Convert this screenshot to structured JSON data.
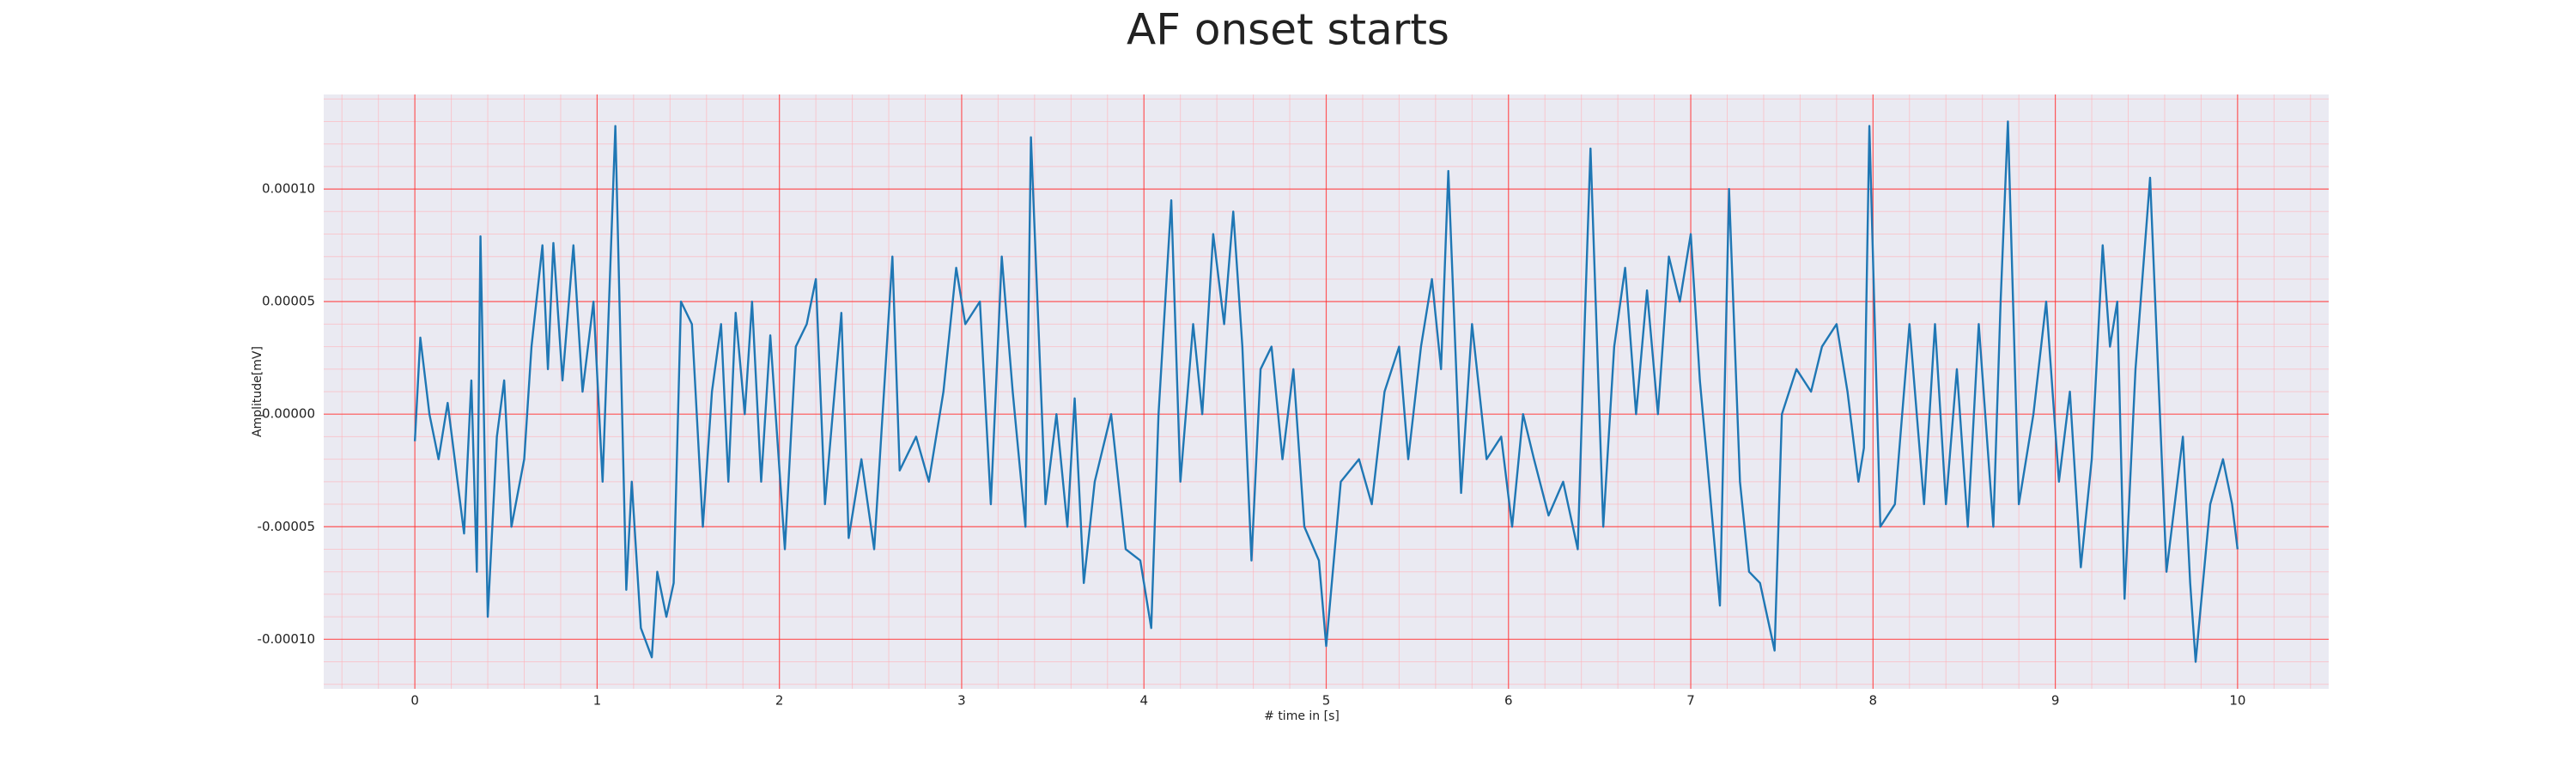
{
  "chart_data": {
    "type": "line",
    "title": "AF onset starts",
    "xlabel": "# time in [s]",
    "ylabel": "Amplitude[mV]",
    "xlim": [
      -0.5,
      10.5
    ],
    "ylim": [
      -0.000122,
      0.000142
    ],
    "xticks": [
      0,
      1,
      2,
      3,
      4,
      5,
      6,
      7,
      8,
      9,
      10
    ],
    "yticks": [
      {
        "value": -0.0001,
        "label": "-0.00010"
      },
      {
        "value": -5e-05,
        "label": "-0.00005"
      },
      {
        "value": 0,
        "label": "0.00000"
      },
      {
        "value": 5e-05,
        "label": "0.00005"
      },
      {
        "value": 0.0001,
        "label": "0.00010"
      }
    ],
    "grid": true,
    "minor_grid": true,
    "series": [
      {
        "color": "#1f77b4",
        "x": [
          0,
          0.03,
          0.08,
          0.13,
          0.18,
          0.27,
          0.31,
          0.34,
          0.36,
          0.4,
          0.45,
          0.49,
          0.53,
          0.6,
          0.64,
          0.7,
          0.73,
          0.76,
          0.81,
          0.87,
          0.92,
          0.98,
          1.03,
          1.1,
          1.16,
          1.19,
          1.24,
          1.3,
          1.33,
          1.38,
          1.42,
          1.46,
          1.52,
          1.58,
          1.63,
          1.68,
          1.72,
          1.76,
          1.81,
          1.85,
          1.9,
          1.95,
          2.03,
          2.09,
          2.15,
          2.2,
          2.25,
          2.34,
          2.38,
          2.45,
          2.52,
          2.62,
          2.66,
          2.75,
          2.82,
          2.9,
          2.97,
          3.02,
          3.1,
          3.16,
          3.22,
          3.28,
          3.35,
          3.38,
          3.46,
          3.52,
          3.58,
          3.62,
          3.67,
          3.73,
          3.82,
          3.9,
          3.98,
          4.04,
          4.08,
          4.15,
          4.2,
          4.27,
          4.32,
          4.38,
          4.44,
          4.49,
          4.54,
          4.59,
          4.64,
          4.7,
          4.76,
          4.82,
          4.88,
          4.96,
          5.0,
          5.08,
          5.18,
          5.25,
          5.32,
          5.4,
          5.45,
          5.52,
          5.58,
          5.63,
          5.67,
          5.74,
          5.8,
          5.88,
          5.96,
          6.02,
          6.08,
          6.14,
          6.22,
          6.3,
          6.38,
          6.42,
          6.45,
          6.52,
          6.58,
          6.64,
          6.7,
          6.76,
          6.82,
          6.88,
          6.94,
          7.0,
          7.05,
          7.1,
          7.16,
          7.21,
          7.27,
          7.32,
          7.38,
          7.46,
          7.5,
          7.58,
          7.66,
          7.72,
          7.8,
          7.86,
          7.92,
          7.95,
          7.98,
          8.04,
          8.12,
          8.2,
          8.28,
          8.34,
          8.4,
          8.46,
          8.52,
          8.58,
          8.66,
          8.7,
          8.74,
          8.8,
          8.88,
          8.95,
          9.02,
          9.08,
          9.14,
          9.2,
          9.26,
          9.3,
          9.34,
          9.38,
          9.44,
          9.52,
          9.61,
          9.7,
          9.74,
          9.77,
          9.85,
          9.92,
          9.97,
          10.0
        ],
        "values": [
          -1.2e-05,
          3.4e-05,
          0,
          -2e-05,
          5e-06,
          -5.3e-05,
          1.5e-05,
          -7e-05,
          7.9e-05,
          -9e-05,
          -1e-05,
          1.5e-05,
          -5e-05,
          -2e-05,
          3e-05,
          7.5e-05,
          2e-05,
          7.6e-05,
          1.5e-05,
          7.5e-05,
          1e-05,
          5e-05,
          -3e-05,
          0.000128,
          -7.8e-05,
          -3e-05,
          -9.5e-05,
          -0.000108,
          -7e-05,
          -9e-05,
          -7.5e-05,
          5e-05,
          4e-05,
          -5e-05,
          1e-05,
          4e-05,
          -3e-05,
          4.5e-05,
          0,
          5e-05,
          -3e-05,
          3.5e-05,
          -6e-05,
          3e-05,
          4e-05,
          6e-05,
          -4e-05,
          4.5e-05,
          -5.5e-05,
          -2e-05,
          -6e-05,
          7e-05,
          -2.5e-05,
          -1e-05,
          -3e-05,
          1e-05,
          6.5e-05,
          4e-05,
          5e-05,
          -4e-05,
          7e-05,
          1e-05,
          -5e-05,
          0.000123,
          -4e-05,
          0,
          -5e-05,
          7e-06,
          -7.5e-05,
          -3e-05,
          0,
          -6e-05,
          -6.5e-05,
          -9.5e-05,
          0,
          9.5e-05,
          -3e-05,
          4e-05,
          0,
          8e-05,
          4e-05,
          9e-05,
          3e-05,
          -6.5e-05,
          2e-05,
          3e-05,
          -2e-05,
          2e-05,
          -5e-05,
          -6.5e-05,
          -0.000103,
          -3e-05,
          -2e-05,
          -4e-05,
          1e-05,
          3e-05,
          -2e-05,
          3e-05,
          6e-05,
          2e-05,
          0.000108,
          -3.5e-05,
          4e-05,
          -2e-05,
          -1e-05,
          -5e-05,
          0,
          -2e-05,
          -4.5e-05,
          -3e-05,
          -6e-05,
          4.5e-05,
          0.000118,
          -5e-05,
          3e-05,
          6.5e-05,
          0,
          5.5e-05,
          0,
          7e-05,
          5e-05,
          8e-05,
          1.5e-05,
          -3e-05,
          -8.5e-05,
          0.0001,
          -3e-05,
          -7e-05,
          -7.5e-05,
          -0.000105,
          0,
          2e-05,
          1e-05,
          3e-05,
          4e-05,
          1e-05,
          -3e-05,
          -1.5e-05,
          0.000128,
          -5e-05,
          -4e-05,
          4e-05,
          -4e-05,
          4e-05,
          -4e-05,
          2e-05,
          -5e-05,
          4e-05,
          -5e-05,
          5e-05,
          0.00013,
          -4e-05,
          0,
          5e-05,
          -3e-05,
          1e-05,
          -6.8e-05,
          -2e-05,
          7.5e-05,
          3e-05,
          5e-05,
          -8.2e-05,
          2e-05,
          0.000105,
          -7e-05,
          -1e-05,
          -7.5e-05,
          -0.00011,
          -4e-05,
          -2e-05,
          -4e-05,
          -6e-05
        ]
      }
    ]
  }
}
